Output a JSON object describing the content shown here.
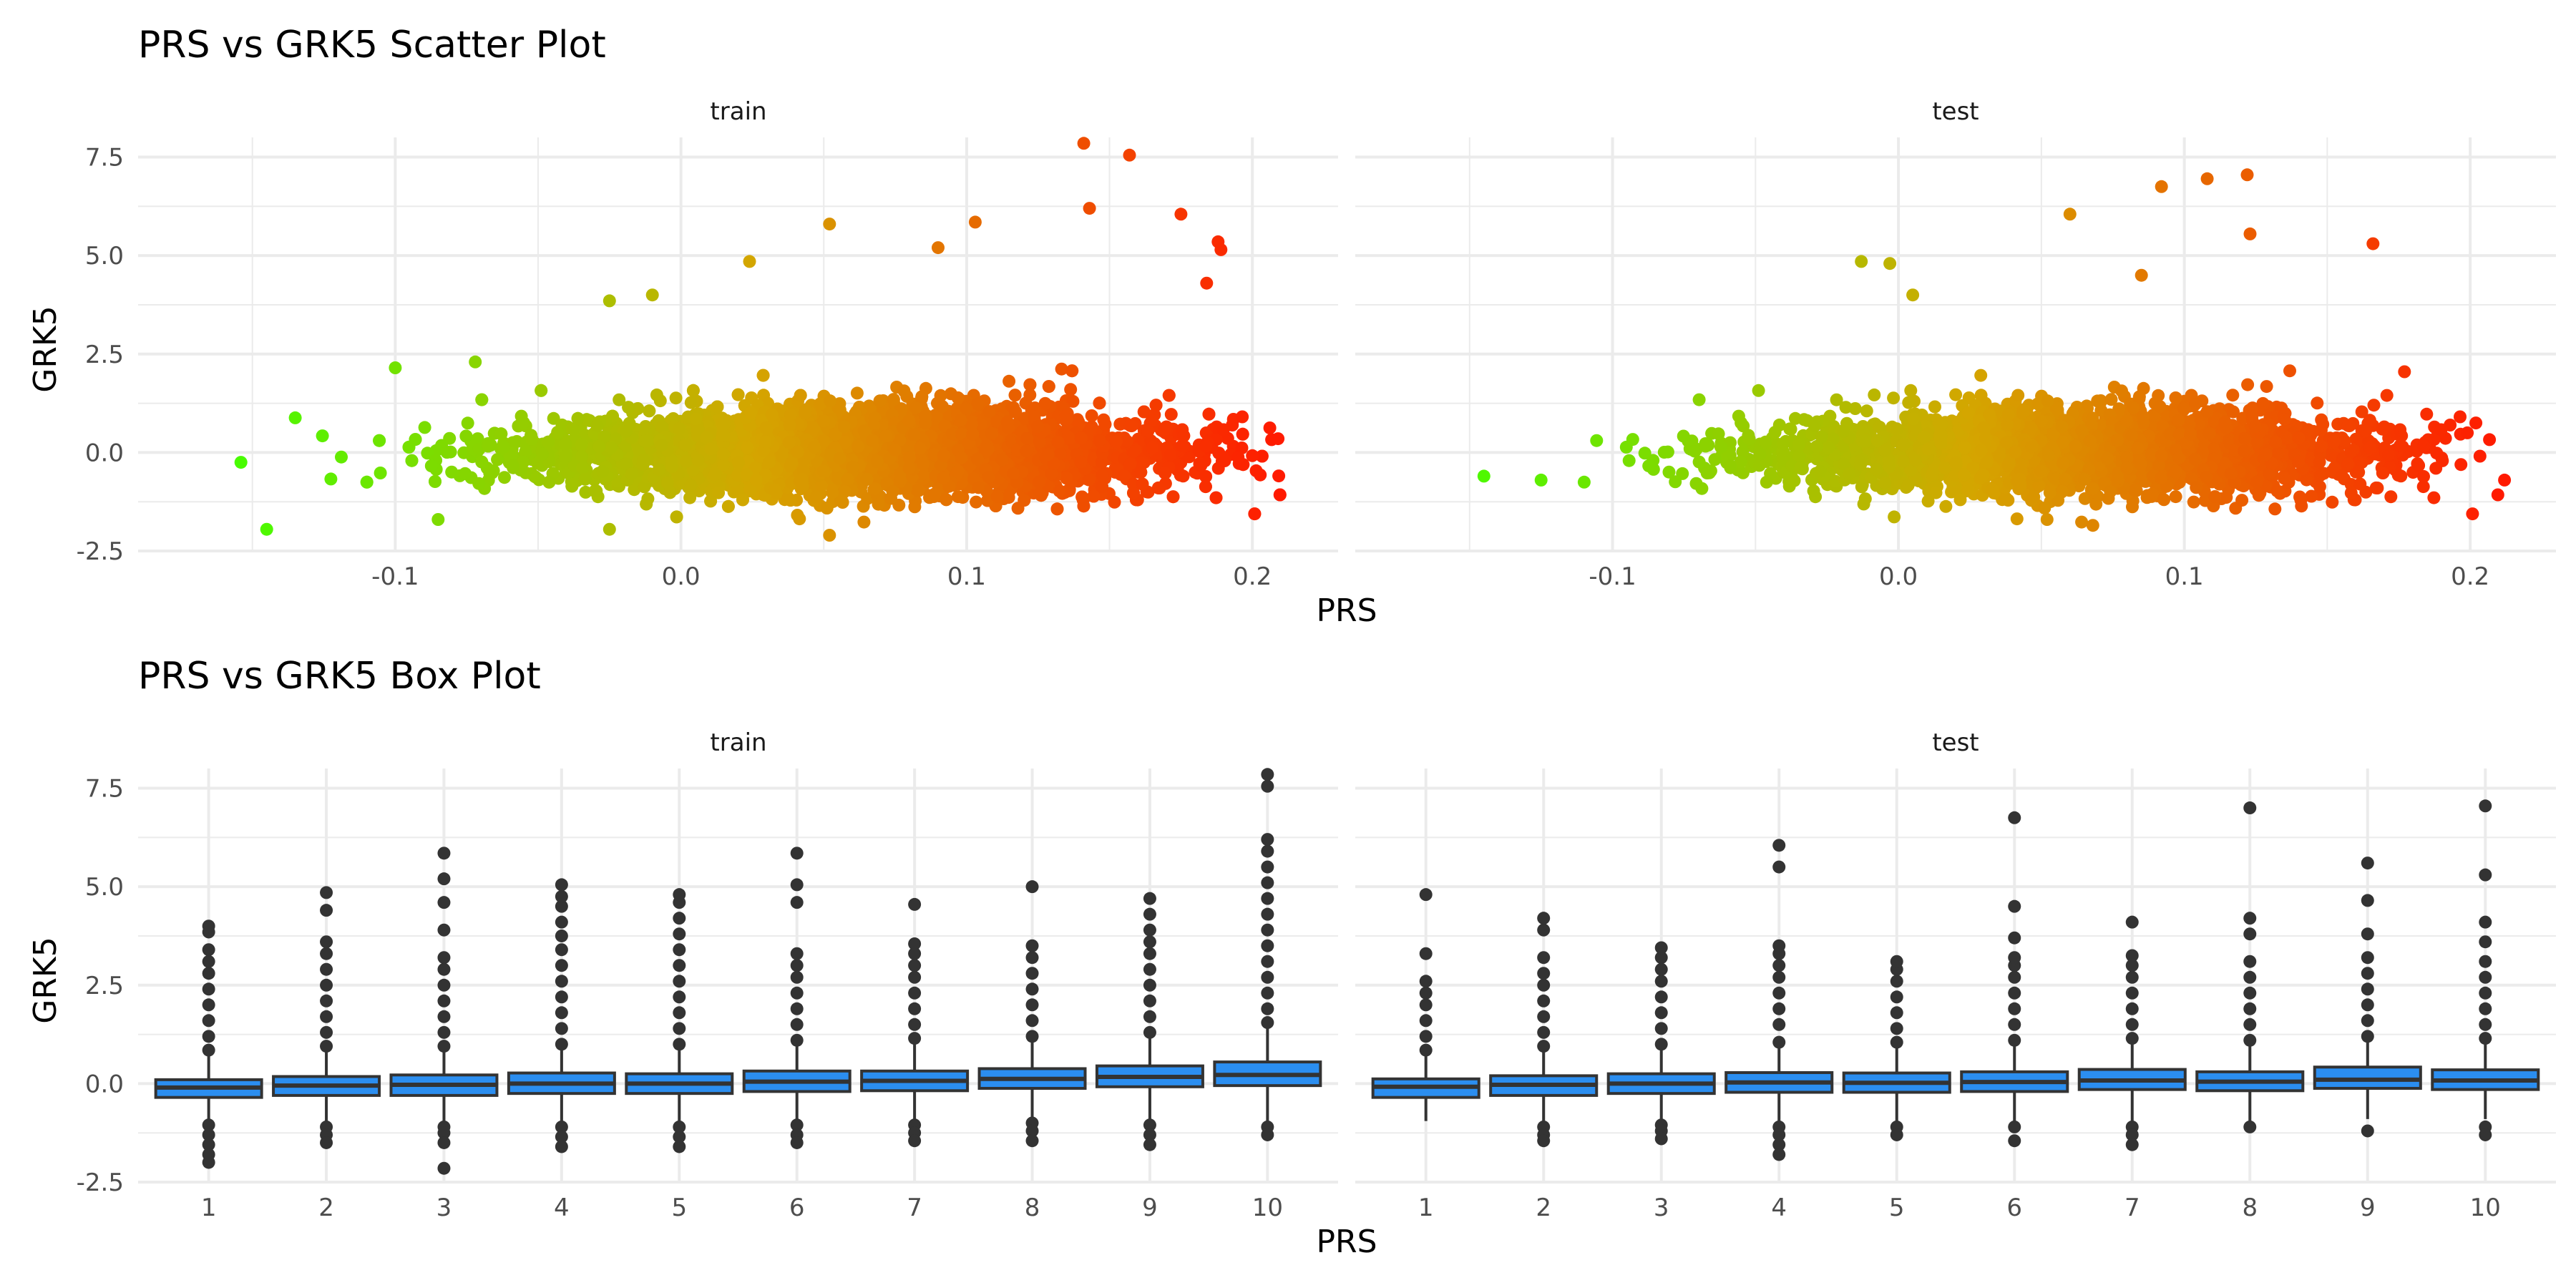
{
  "figure": {
    "top_title": "PRS vs GRK5 Scatter Plot",
    "bottom_title": "PRS vs GRK5 Box Plot"
  },
  "colors": {
    "low": "#43ff00",
    "mid": "#d4a600",
    "high": "#ff1a00",
    "box_fill": "#2b8ef0",
    "box_line": "#333333",
    "outlier": "#333333",
    "grid": "#ebebeb",
    "text": "#4d4d4d"
  },
  "chart_data": [
    {
      "type": "scatter",
      "title": "PRS vs GRK5 Scatter Plot",
      "xlabel": "PRS",
      "ylabel": "GRK5",
      "xlim": [
        -0.19,
        0.23
      ],
      "ylim": [
        -2.5,
        8.0
      ],
      "xticks": [
        -0.1,
        0.0,
        0.1,
        0.2
      ],
      "xtick_labels": [
        "-0.1",
        "0.0",
        "0.1",
        "0.2"
      ],
      "yticks": [
        -2.5,
        0.0,
        2.5,
        5.0,
        7.5
      ],
      "ytick_labels": [
        "-2.5",
        "0.0",
        "2.5",
        "5.0",
        "7.5"
      ],
      "color_by": "PRS (green → orange → red)",
      "grid": true,
      "legend": "none",
      "panels": [
        {
          "name": "train",
          "density": {
            "x_min": -0.16,
            "x_max": 0.21,
            "n": 5200
          },
          "extremes": [
            {
              "x": 0.141,
              "y": 7.85
            },
            {
              "x": 0.157,
              "y": 7.55
            },
            {
              "x": 0.143,
              "y": 6.2
            },
            {
              "x": 0.175,
              "y": 6.05
            },
            {
              "x": 0.103,
              "y": 5.85
            },
            {
              "x": 0.052,
              "y": 5.8
            },
            {
              "x": 0.188,
              "y": 5.35
            },
            {
              "x": 0.189,
              "y": 5.15
            },
            {
              "x": 0.09,
              "y": 5.2
            },
            {
              "x": 0.024,
              "y": 4.85
            },
            {
              "x": 0.184,
              "y": 4.3
            },
            {
              "x": -0.025,
              "y": 3.85
            },
            {
              "x": -0.01,
              "y": 4.0
            },
            {
              "x": -0.1,
              "y": 2.15
            },
            {
              "x": -0.072,
              "y": 2.3
            },
            {
              "x": -0.145,
              "y": -1.95
            },
            {
              "x": -0.085,
              "y": -1.7
            },
            {
              "x": -0.025,
              "y": -1.95
            },
            {
              "x": 0.052,
              "y": -2.1
            },
            {
              "x": 0.2,
              "y": -0.08
            },
            {
              "x": 0.195,
              "y": -0.12
            },
            {
              "x": 0.209,
              "y": 0.35
            },
            {
              "x": -0.154,
              "y": -0.25
            },
            {
              "x": -0.135,
              "y": 0.88
            }
          ]
        },
        {
          "name": "test",
          "density": {
            "x_min": -0.15,
            "x_max": 0.21,
            "n": 2600
          },
          "extremes": [
            {
              "x": 0.122,
              "y": 7.05
            },
            {
              "x": 0.108,
              "y": 6.95
            },
            {
              "x": 0.092,
              "y": 6.75
            },
            {
              "x": 0.06,
              "y": 6.05
            },
            {
              "x": 0.123,
              "y": 5.55
            },
            {
              "x": 0.166,
              "y": 5.3
            },
            {
              "x": -0.003,
              "y": 4.8
            },
            {
              "x": -0.013,
              "y": 4.85
            },
            {
              "x": 0.085,
              "y": 4.5
            },
            {
              "x": 0.005,
              "y": 4.0
            },
            {
              "x": 0.202,
              "y": 0.75
            },
            {
              "x": 0.199,
              "y": 0.5
            },
            {
              "x": 0.212,
              "y": -0.7
            },
            {
              "x": -0.145,
              "y": -0.6
            },
            {
              "x": -0.125,
              "y": -0.7
            },
            {
              "x": 0.068,
              "y": -1.85
            },
            {
              "x": 0.052,
              "y": -1.7
            },
            {
              "x": 0.177,
              "y": 2.05
            },
            {
              "x": 0.188,
              "y": -0.4
            }
          ]
        }
      ]
    },
    {
      "type": "box",
      "title": "PRS vs GRK5 Box Plot",
      "xlabel": "PRS",
      "ylabel": "GRK5",
      "categories": [
        "1",
        "2",
        "3",
        "4",
        "5",
        "6",
        "7",
        "8",
        "9",
        "10"
      ],
      "ylim": [
        -2.5,
        8.0
      ],
      "yticks": [
        -2.5,
        0.0,
        2.5,
        5.0,
        7.5
      ],
      "ytick_labels": [
        "-2.5",
        "0.0",
        "2.5",
        "5.0",
        "7.5"
      ],
      "grid": true,
      "legend": "none",
      "panels": [
        {
          "name": "train",
          "boxes": [
            {
              "q1": -0.35,
              "median": -0.1,
              "q3": 0.1,
              "whisker_low": -0.95,
              "whisker_high": 0.75,
              "out_high": [
                0.85,
                1.2,
                1.6,
                2.0,
                2.4,
                2.8,
                3.1,
                3.4,
                3.85,
                4.0
              ],
              "out_low": [
                -1.05,
                -1.3,
                -1.55,
                -1.8,
                -2.0
              ]
            },
            {
              "q1": -0.3,
              "median": -0.05,
              "q3": 0.18,
              "whisker_low": -1.0,
              "whisker_high": 0.85,
              "out_high": [
                0.95,
                1.3,
                1.7,
                2.1,
                2.5,
                2.9,
                3.3,
                3.6,
                4.4,
                4.85
              ],
              "out_low": [
                -1.1,
                -1.3,
                -1.5
              ]
            },
            {
              "q1": -0.3,
              "median": -0.03,
              "q3": 0.22,
              "whisker_low": -1.0,
              "whisker_high": 0.85,
              "out_high": [
                0.95,
                1.3,
                1.7,
                2.1,
                2.5,
                2.9,
                3.2,
                3.9,
                4.6,
                5.2,
                5.85
              ],
              "out_low": [
                -1.1,
                -1.25,
                -1.5,
                -2.15
              ]
            },
            {
              "q1": -0.25,
              "median": 0.0,
              "q3": 0.27,
              "whisker_low": -1.0,
              "whisker_high": 0.9,
              "out_high": [
                1.0,
                1.4,
                1.8,
                2.2,
                2.6,
                3.0,
                3.4,
                3.75,
                4.1,
                4.5,
                4.75,
                5.05
              ],
              "out_low": [
                -1.1,
                -1.35,
                -1.6
              ]
            },
            {
              "q1": -0.25,
              "median": 0.0,
              "q3": 0.25,
              "whisker_low": -1.0,
              "whisker_high": 0.9,
              "out_high": [
                1.0,
                1.4,
                1.8,
                2.2,
                2.6,
                3.0,
                3.4,
                3.8,
                4.2,
                4.6,
                4.8
              ],
              "out_low": [
                -1.1,
                -1.35,
                -1.6
              ]
            },
            {
              "q1": -0.2,
              "median": 0.05,
              "q3": 0.32,
              "whisker_low": -0.95,
              "whisker_high": 1.0,
              "out_high": [
                1.1,
                1.5,
                1.9,
                2.3,
                2.7,
                3.0,
                3.3,
                4.6,
                5.05,
                5.85
              ],
              "out_low": [
                -1.05,
                -1.3,
                -1.5
              ]
            },
            {
              "q1": -0.18,
              "median": 0.07,
              "q3": 0.32,
              "whisker_low": -0.95,
              "whisker_high": 1.05,
              "out_high": [
                1.15,
                1.5,
                1.9,
                2.3,
                2.7,
                3.0,
                3.3,
                3.55,
                4.55
              ],
              "out_low": [
                -1.05,
                -1.25,
                -1.45
              ]
            },
            {
              "q1": -0.12,
              "median": 0.12,
              "q3": 0.38,
              "whisker_low": -0.9,
              "whisker_high": 1.1,
              "out_high": [
                1.2,
                1.6,
                2.0,
                2.4,
                2.8,
                3.2,
                3.5,
                5.0
              ],
              "out_low": [
                -1.0,
                -1.2,
                -1.45
              ]
            },
            {
              "q1": -0.08,
              "median": 0.17,
              "q3": 0.45,
              "whisker_low": -0.95,
              "whisker_high": 1.2,
              "out_high": [
                1.3,
                1.7,
                2.1,
                2.5,
                2.9,
                3.3,
                3.6,
                3.9,
                4.3,
                4.7
              ],
              "out_low": [
                -1.05,
                -1.3,
                -1.55
              ]
            },
            {
              "q1": -0.05,
              "median": 0.22,
              "q3": 0.55,
              "whisker_low": -1.0,
              "whisker_high": 1.45,
              "out_high": [
                1.55,
                1.9,
                2.3,
                2.7,
                3.1,
                3.5,
                3.9,
                4.3,
                4.7,
                5.1,
                5.5,
                5.9,
                6.2,
                7.55,
                7.85
              ],
              "out_low": [
                -1.1,
                -1.3
              ]
            }
          ]
        },
        {
          "name": "test",
          "boxes": [
            {
              "q1": -0.35,
              "median": -0.08,
              "q3": 0.12,
              "whisker_low": -0.95,
              "whisker_high": 0.75,
              "out_high": [
                0.85,
                1.2,
                1.6,
                2.0,
                2.3,
                2.6,
                3.3,
                4.8
              ],
              "out_low": []
            },
            {
              "q1": -0.3,
              "median": -0.03,
              "q3": 0.2,
              "whisker_low": -1.0,
              "whisker_high": 0.85,
              "out_high": [
                0.95,
                1.3,
                1.7,
                2.1,
                2.5,
                2.8,
                3.2,
                3.9,
                4.2
              ],
              "out_low": [
                -1.1,
                -1.3,
                -1.45
              ]
            },
            {
              "q1": -0.25,
              "median": 0.0,
              "q3": 0.25,
              "whisker_low": -0.95,
              "whisker_high": 0.9,
              "out_high": [
                1.0,
                1.4,
                1.8,
                2.2,
                2.6,
                2.9,
                3.2,
                3.45
              ],
              "out_low": [
                -1.05,
                -1.2,
                -1.4
              ]
            },
            {
              "q1": -0.22,
              "median": 0.03,
              "q3": 0.28,
              "whisker_low": -1.0,
              "whisker_high": 0.95,
              "out_high": [
                1.05,
                1.5,
                1.9,
                2.3,
                2.7,
                3.0,
                3.3,
                3.5,
                5.5,
                6.05
              ],
              "out_low": [
                -1.1,
                -1.3,
                -1.55,
                -1.8
              ]
            },
            {
              "q1": -0.22,
              "median": 0.02,
              "q3": 0.27,
              "whisker_low": -0.95,
              "whisker_high": 0.95,
              "out_high": [
                1.05,
                1.4,
                1.8,
                2.2,
                2.6,
                2.9,
                3.1
              ],
              "out_low": [
                -1.1,
                -1.3
              ]
            },
            {
              "q1": -0.2,
              "median": 0.04,
              "q3": 0.3,
              "whisker_low": -0.95,
              "whisker_high": 1.0,
              "out_high": [
                1.1,
                1.5,
                1.9,
                2.3,
                2.7,
                3.0,
                3.2,
                3.7,
                4.5,
                6.75
              ],
              "out_low": [
                -1.1,
                -1.45
              ]
            },
            {
              "q1": -0.15,
              "median": 0.08,
              "q3": 0.36,
              "whisker_low": -0.95,
              "whisker_high": 1.05,
              "out_high": [
                1.15,
                1.5,
                1.9,
                2.3,
                2.7,
                3.0,
                3.25,
                4.1
              ],
              "out_low": [
                -1.1,
                -1.3,
                -1.55
              ]
            },
            {
              "q1": -0.18,
              "median": 0.05,
              "q3": 0.3,
              "whisker_low": -0.95,
              "whisker_high": 1.0,
              "out_high": [
                1.1,
                1.5,
                1.9,
                2.3,
                2.7,
                3.1,
                3.8,
                4.2,
                7.0
              ],
              "out_low": [
                -1.1
              ]
            },
            {
              "q1": -0.12,
              "median": 0.1,
              "q3": 0.42,
              "whisker_low": -0.9,
              "whisker_high": 1.1,
              "out_high": [
                1.2,
                1.6,
                2.0,
                2.4,
                2.8,
                3.2,
                3.8,
                4.65,
                5.6
              ],
              "out_low": [
                -1.2
              ]
            },
            {
              "q1": -0.15,
              "median": 0.08,
              "q3": 0.35,
              "whisker_low": -0.9,
              "whisker_high": 1.05,
              "out_high": [
                1.15,
                1.5,
                1.9,
                2.3,
                2.7,
                3.1,
                3.6,
                4.1,
                5.3,
                7.05
              ],
              "out_low": [
                -1.1,
                -1.3
              ]
            }
          ]
        }
      ]
    }
  ]
}
